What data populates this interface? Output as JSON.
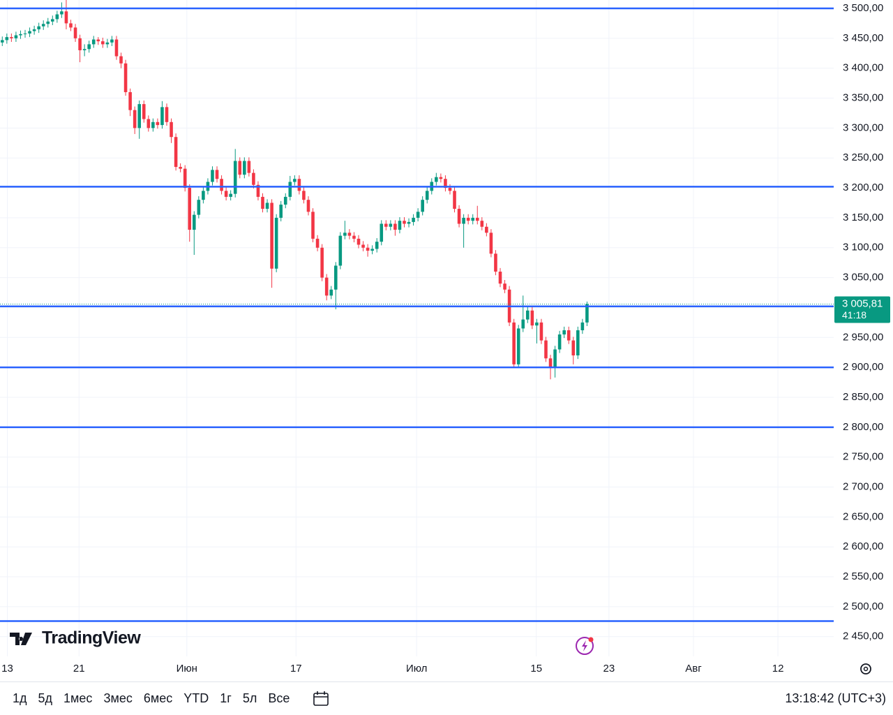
{
  "chart_data": {
    "type": "candlestick",
    "open": [
      3443,
      3447,
      3452,
      3450,
      3455,
      3457,
      3458,
      3462,
      3465,
      3470,
      3474,
      3478,
      3482,
      3490,
      3495,
      3475,
      3468,
      3450,
      3430,
      3432,
      3440,
      3448,
      3445,
      3440,
      3443,
      3448,
      3420,
      3408,
      3360,
      3330,
      3300,
      3340,
      3315,
      3300,
      3310,
      3305,
      3335,
      3310,
      3285,
      3235,
      3232,
      3200,
      3130,
      3155,
      3180,
      3195,
      3210,
      3230,
      3215,
      3195,
      3185,
      3190,
      3245,
      3222,
      3245,
      3225,
      3205,
      3185,
      3165,
      3175,
      3065,
      3150,
      3172,
      3185,
      3210,
      3215,
      3195,
      3180,
      3160,
      3115,
      3100,
      3050,
      3020,
      3030,
      3070,
      3120,
      3125,
      3120,
      3115,
      3105,
      3100,
      3095,
      3098,
      3110,
      3140,
      3135,
      3140,
      3130,
      3145,
      3140,
      3143,
      3150,
      3160,
      3180,
      3195,
      3210,
      3218,
      3215,
      3200,
      3195,
      3165,
      3140,
      3150,
      3145,
      3150,
      3145,
      3135,
      3125,
      3090,
      3060,
      3040,
      3030,
      2975,
      2905,
      2965,
      2980,
      2995,
      2970,
      2975,
      2945,
      2915,
      2900,
      2930,
      2955,
      2962,
      2945,
      2920,
      2962,
      2975
    ],
    "high": [
      3453,
      3458,
      3458,
      3461,
      3463,
      3464,
      3468,
      3471,
      3476,
      3480,
      3484,
      3488,
      3496,
      3510,
      3520,
      3481,
      3474,
      3456,
      3440,
      3446,
      3454,
      3452,
      3451,
      3449,
      3454,
      3454,
      3426,
      3414,
      3366,
      3336,
      3346,
      3346,
      3321,
      3316,
      3316,
      3345,
      3341,
      3316,
      3291,
      3241,
      3238,
      3206,
      3161,
      3186,
      3201,
      3216,
      3236,
      3236,
      3221,
      3201,
      3196,
      3265,
      3251,
      3251,
      3251,
      3231,
      3211,
      3191,
      3181,
      3181,
      3156,
      3178,
      3191,
      3220,
      3221,
      3221,
      3201,
      3186,
      3166,
      3121,
      3106,
      3056,
      3036,
      3076,
      3126,
      3145,
      3131,
      3126,
      3121,
      3111,
      3106,
      3104,
      3116,
      3146,
      3146,
      3146,
      3146,
      3151,
      3151,
      3149,
      3156,
      3166,
      3186,
      3201,
      3216,
      3225,
      3224,
      3221,
      3206,
      3201,
      3171,
      3156,
      3156,
      3156,
      3170,
      3151,
      3141,
      3131,
      3096,
      3066,
      3046,
      3036,
      2981,
      2971,
      3020,
      3001,
      3001,
      2981,
      2981,
      2951,
      2921,
      2936,
      2961,
      2968,
      2968,
      2951,
      2968,
      2981,
      3010
    ],
    "low": [
      3437,
      3441,
      3444,
      3444,
      3449,
      3451,
      3452,
      3456,
      3459,
      3464,
      3468,
      3472,
      3476,
      3484,
      3465,
      3462,
      3444,
      3410,
      3420,
      3426,
      3434,
      3439,
      3434,
      3434,
      3437,
      3414,
      3400,
      3354,
      3320,
      3290,
      3282,
      3309,
      3294,
      3294,
      3299,
      3299,
      3304,
      3275,
      3229,
      3226,
      3194,
      3110,
      3088,
      3149,
      3174,
      3189,
      3204,
      3209,
      3189,
      3179,
      3179,
      3184,
      3216,
      3216,
      3219,
      3199,
      3179,
      3159,
      3159,
      3033,
      3059,
      3144,
      3166,
      3179,
      3204,
      3189,
      3174,
      3154,
      3109,
      3094,
      3044,
      3012,
      3014,
      2997,
      3064,
      3114,
      3114,
      3109,
      3099,
      3094,
      3085,
      3089,
      3092,
      3104,
      3129,
      3129,
      3120,
      3124,
      3134,
      3134,
      3137,
      3144,
      3154,
      3174,
      3189,
      3204,
      3209,
      3194,
      3189,
      3159,
      3134,
      3100,
      3139,
      3139,
      3139,
      3129,
      3119,
      3084,
      3054,
      3034,
      3024,
      2969,
      2899,
      2899,
      2959,
      2974,
      2964,
      2940,
      2939,
      2909,
      2880,
      2883,
      2924,
      2949,
      2939,
      2905,
      2914,
      2956,
      2969
    ],
    "close": [
      3447,
      3452,
      3450,
      3455,
      3457,
      3458,
      3462,
      3465,
      3470,
      3474,
      3478,
      3482,
      3490,
      3495,
      3475,
      3468,
      3450,
      3430,
      3432,
      3440,
      3448,
      3445,
      3440,
      3443,
      3448,
      3420,
      3408,
      3360,
      3330,
      3300,
      3340,
      3315,
      3300,
      3310,
      3305,
      3335,
      3310,
      3285,
      3235,
      3232,
      3200,
      3130,
      3155,
      3180,
      3195,
      3210,
      3230,
      3215,
      3195,
      3185,
      3190,
      3245,
      3222,
      3245,
      3225,
      3205,
      3185,
      3165,
      3175,
      3065,
      3150,
      3172,
      3185,
      3210,
      3215,
      3195,
      3180,
      3160,
      3115,
      3100,
      3050,
      3020,
      3030,
      3070,
      3120,
      3125,
      3120,
      3115,
      3105,
      3100,
      3095,
      3098,
      3110,
      3140,
      3135,
      3140,
      3130,
      3145,
      3140,
      3143,
      3150,
      3160,
      3180,
      3195,
      3210,
      3218,
      3215,
      3200,
      3195,
      3165,
      3140,
      3150,
      3145,
      3150,
      3145,
      3135,
      3125,
      3090,
      3060,
      3040,
      3030,
      2975,
      2905,
      2965,
      2980,
      2995,
      2970,
      2975,
      2945,
      2915,
      2900,
      2930,
      2955,
      2962,
      2945,
      2920,
      2962,
      2975,
      3005.81
    ],
    "up_color": "#089981",
    "down_color": "#f23645",
    "xlim": [
      -0.5,
      182
    ],
    "xticks": [
      {
        "value": 1.1,
        "label": "13"
      },
      {
        "value": 16.8,
        "label": "21"
      },
      {
        "value": 40.4,
        "label": "Июн"
      },
      {
        "value": 64.3,
        "label": "17"
      },
      {
        "value": 90.7,
        "label": "Июл"
      },
      {
        "value": 116.9,
        "label": "15"
      },
      {
        "value": 132.8,
        "label": "23"
      },
      {
        "value": 151.3,
        "label": "Авг"
      },
      {
        "value": 169.8,
        "label": "12"
      }
    ],
    "ylim": [
      2417,
      3514
    ],
    "yticks": [
      {
        "value": 3500,
        "label": "3 500,00"
      },
      {
        "value": 3450,
        "label": "3 450,00"
      },
      {
        "value": 3400,
        "label": "3 400,00"
      },
      {
        "value": 3350,
        "label": "3 350,00"
      },
      {
        "value": 3300,
        "label": "3 300,00"
      },
      {
        "value": 3250,
        "label": "3 250,00"
      },
      {
        "value": 3200,
        "label": "3 200,00"
      },
      {
        "value": 3150,
        "label": "3 150,00"
      },
      {
        "value": 3100,
        "label": "3 100,00"
      },
      {
        "value": 3050,
        "label": "3 050,00"
      },
      {
        "value": 3000,
        "label": "3 000,00"
      },
      {
        "value": 2950,
        "label": "2 950,00"
      },
      {
        "value": 2900,
        "label": "2 900,00"
      },
      {
        "value": 2850,
        "label": "2 850,00"
      },
      {
        "value": 2800,
        "label": "2 800,00"
      },
      {
        "value": 2750,
        "label": "2 750,00"
      },
      {
        "value": 2700,
        "label": "2 700,00"
      },
      {
        "value": 2650,
        "label": "2 650,00"
      },
      {
        "value": 2600,
        "label": "2 600,00"
      },
      {
        "value": 2550,
        "label": "2 550,00"
      },
      {
        "value": 2500,
        "label": "2 500,00"
      },
      {
        "value": 2450,
        "label": "2 450,00"
      }
    ],
    "grid": true,
    "horizontal_lines": {
      "values": [
        3500,
        3202,
        3002,
        2900,
        2800,
        2476
      ],
      "color": "#2962ff"
    },
    "last_price": {
      "value": 3005.81,
      "label": "3 005,81",
      "countdown": "41:18"
    }
  },
  "ui": {
    "logo": "TradingView",
    "ranges": [
      "1д",
      "5д",
      "1мес",
      "3мес",
      "6мес",
      "YTD",
      "1г",
      "5л",
      "Все"
    ],
    "clock": "13:18:42 (UTC+3)"
  }
}
